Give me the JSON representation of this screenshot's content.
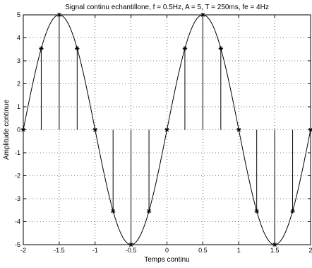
{
  "chart_data": {
    "type": "line",
    "title": "Signal continu echantillone, f = 0.5Hz, A = 5, T = 250ms, fe = 4Hz",
    "xlabel": "Temps continu",
    "ylabel": "Amplitude continue",
    "xlim": [
      -2,
      2
    ],
    "ylim": [
      -5,
      5
    ],
    "xticks": [
      -2,
      -1.5,
      -1,
      -0.5,
      0,
      0.5,
      1,
      1.5,
      2
    ],
    "xtick_labels": [
      "-2",
      "-1.5",
      "-1",
      "-0.5",
      "0",
      "0.5",
      "1",
      "1.5",
      "2"
    ],
    "yticks": [
      -5,
      -4,
      -3,
      -2,
      -1,
      0,
      1,
      2,
      3,
      4,
      5
    ],
    "ytick_labels": [
      "-5",
      "-4",
      "-3",
      "-2",
      "-1",
      "0",
      "1",
      "2",
      "3",
      "4",
      "5"
    ],
    "grid": true,
    "line_color": "#000000",
    "grid_color": "#000000",
    "series": [
      {
        "kind": "continuous-signal",
        "function": "5*sin(pi*t)",
        "x_range": [
          -2,
          2
        ]
      },
      {
        "kind": "sampled-stems",
        "marker": "asterisk",
        "x": [
          -2,
          -1.75,
          -1.5,
          -1.25,
          -1,
          -0.75,
          -0.5,
          -0.25,
          0,
          0.25,
          0.5,
          0.75,
          1,
          1.25,
          1.5,
          1.75,
          2
        ],
        "y": [
          0,
          3.54,
          5,
          3.54,
          0,
          -3.54,
          -5,
          -3.54,
          0,
          3.54,
          5,
          3.54,
          0,
          -3.54,
          -5,
          -3.54,
          0
        ]
      }
    ]
  }
}
